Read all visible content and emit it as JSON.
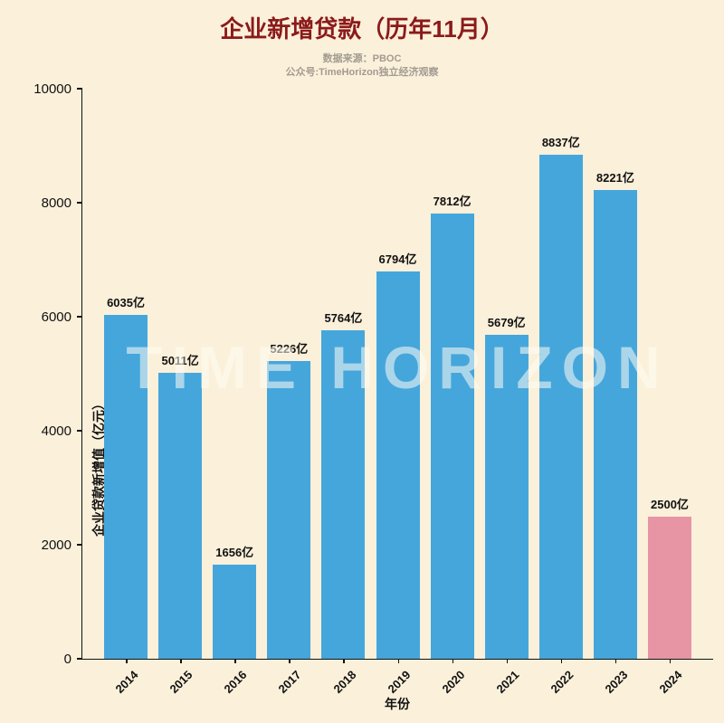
{
  "title": "企业新增贷款（历年11月）",
  "subtitle_line1": "数据来源：PBOC",
  "subtitle_line2": "公众号:TimeHorizon独立经济观察",
  "watermark": "TIME HORIZON",
  "colors": {
    "background": "#FBF0DA",
    "bar_default": "#45A6DC",
    "bar_highlight": "#E795A5",
    "title": "#8B1A1A",
    "subtitle": "#A39B91",
    "axis": "#111111"
  },
  "chart_data": {
    "type": "bar",
    "title": "企业新增贷款（历年11月）",
    "xlabel": "年份",
    "ylabel": "企业贷款新增值（亿元）",
    "categories": [
      "2014",
      "2015",
      "2016",
      "2017",
      "2018",
      "2019",
      "2020",
      "2021",
      "2022",
      "2023",
      "2024"
    ],
    "values": [
      6035,
      5011,
      1656,
      5226,
      5764,
      6794,
      7812,
      5679,
      8837,
      8221,
      2500
    ],
    "bar_labels": [
      "6035亿",
      "5011亿",
      "1656亿",
      "5226亿",
      "5764亿",
      "6794亿",
      "7812亿",
      "5679亿",
      "8837亿",
      "8221亿",
      "2500亿"
    ],
    "highlight_index": 10,
    "ylim": [
      0,
      10000
    ],
    "yticks": [
      0,
      2000,
      4000,
      6000,
      8000,
      10000
    ],
    "grid": false,
    "legend": null
  }
}
